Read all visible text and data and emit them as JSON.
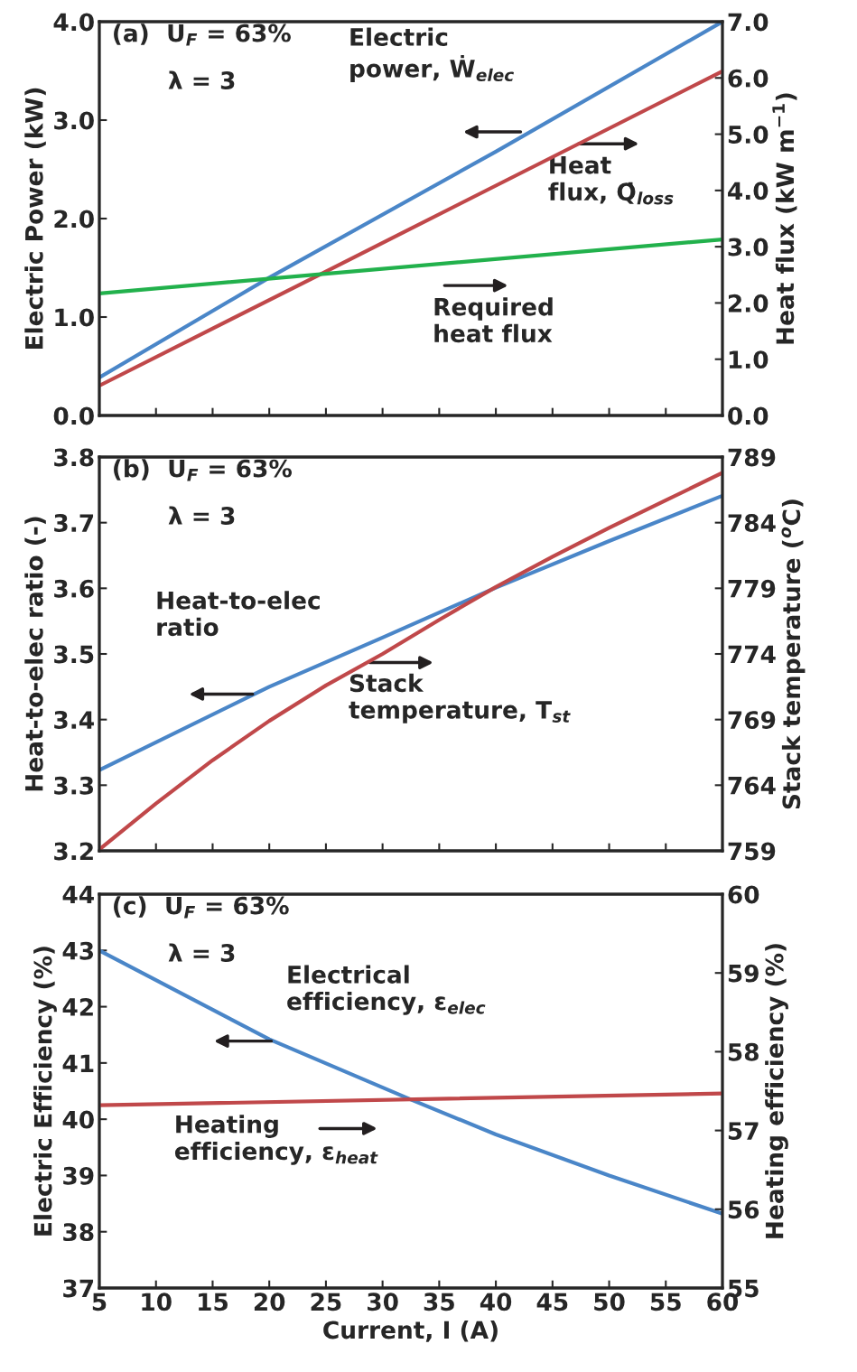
{
  "chart_data": [
    {
      "type": "line",
      "xlim": [
        5,
        60
      ],
      "xticks": [
        5,
        10,
        15,
        20,
        25,
        30,
        35,
        40,
        45,
        50,
        55,
        60
      ],
      "tick_labels": "y",
      "ylabel": "Electric Power (kW)",
      "y2label": "Heat flux (kW m$^{−1}$)",
      "ylim": [
        0,
        4
      ],
      "yticks": [
        {
          "value": 0,
          "label": "0.0"
        },
        {
          "value": 1,
          "label": "1.0"
        },
        {
          "value": 2,
          "label": "2.0"
        },
        {
          "value": 3,
          "label": "3.0"
        },
        {
          "value": 4,
          "label": "4.0"
        }
      ],
      "y2lim": [
        0,
        7
      ],
      "y2ticks": [
        {
          "value": 0,
          "label": "0.0"
        },
        {
          "value": 1,
          "label": "1.0"
        },
        {
          "value": 2,
          "label": "2.0"
        },
        {
          "value": 3,
          "label": "3.0"
        },
        {
          "value": 4,
          "label": "4.0"
        },
        {
          "value": 5,
          "label": "5.0"
        },
        {
          "value": 6,
          "label": "6.0"
        },
        {
          "value": 7,
          "label": "7.0"
        }
      ],
      "annotations": [
        "(a)  U$_{F}$ = 63%",
        "λ = 3"
      ],
      "series": [
        {
          "name": "Electric\npower, Ẇ$_{elec}$",
          "color": "#4a86c8",
          "axis": "y",
          "x": [
            5,
            20,
            40,
            60
          ],
          "values": [
            0.385,
            1.4,
            2.68,
            4.0
          ]
        },
        {
          "name": "Heat\nflux, Q̇$_{loss}$",
          "color": "#c0484a",
          "axis": "y2",
          "x": [
            5,
            25,
            60
          ],
          "values": [
            0.53,
            2.56,
            6.12
          ]
        },
        {
          "name": "Required\nheat flux",
          "color": "#22b14c",
          "axis": "y2",
          "x": [
            5,
            60
          ],
          "values": [
            2.17,
            3.13
          ]
        }
      ]
    },
    {
      "type": "line",
      "xlim": [
        5,
        60
      ],
      "xticks": [
        5,
        10,
        15,
        20,
        25,
        30,
        35,
        40,
        45,
        50,
        55,
        60
      ],
      "tick_labels": "y",
      "ylabel": "Heat-to-elec ratio (-)",
      "y2label": "Stack temperature ($^{o}$C)",
      "ylim": [
        3.2,
        3.8
      ],
      "yticks": [
        3.2,
        3.3,
        3.4,
        3.5,
        3.6,
        3.7,
        3.8
      ],
      "y2lim": [
        759,
        789
      ],
      "y2ticks": [
        759,
        764,
        769,
        774,
        779,
        784,
        789
      ],
      "annotations": [
        "(b)  U$_{F}$ = 63%",
        "λ = 3"
      ],
      "series": [
        {
          "name": "Heat-to-elec\nratio",
          "color": "#4a86c8",
          "axis": "y",
          "x": [
            5,
            20,
            30,
            40,
            50,
            60
          ],
          "values": [
            3.323,
            3.45,
            3.525,
            3.601,
            3.672,
            3.741
          ]
        },
        {
          "name": "Stack\ntemperature, T$_{st}$",
          "color": "#c0484a",
          "axis": "y2",
          "x": [
            5,
            10,
            15,
            20,
            25,
            30,
            35,
            40,
            45,
            50,
            55,
            60
          ],
          "values": [
            759.1,
            762.6,
            765.9,
            768.9,
            771.6,
            774.0,
            776.6,
            779.1,
            781.4,
            783.6,
            785.7,
            787.8
          ]
        }
      ]
    },
    {
      "type": "line",
      "xlim": [
        5,
        60
      ],
      "xticks": [
        5,
        10,
        15,
        20,
        25,
        30,
        35,
        40,
        45,
        50,
        55,
        60
      ],
      "xlabel": "Current, I (A)",
      "ylabel": "Electric Efficiency (%)",
      "y2label": "Heating efficiency (%)",
      "ylim": [
        37,
        44
      ],
      "yticks": [
        37,
        38,
        39,
        40,
        41,
        42,
        43,
        44
      ],
      "y2lim": [
        55,
        60
      ],
      "y2ticks": [
        55,
        56,
        57,
        58,
        59,
        60
      ],
      "annotations": [
        "(c)  U$_{F}$ = 63%",
        "λ = 3"
      ],
      "series": [
        {
          "name": "Electrical\nefficiency, ε$_{elec}$",
          "color": "#4a86c8",
          "axis": "y",
          "x": [
            5,
            20,
            32.5,
            40,
            50,
            60
          ],
          "values": [
            43.0,
            41.42,
            40.35,
            39.73,
            39.0,
            38.32
          ]
        },
        {
          "name": "Heating\nefficiency, ε$_{heat}$",
          "color": "#c0484a",
          "axis": "y2",
          "x": [
            5,
            60
          ],
          "values": [
            57.32,
            57.47
          ]
        }
      ]
    }
  ]
}
